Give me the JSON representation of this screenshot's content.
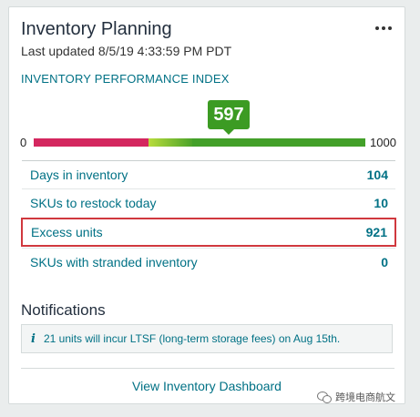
{
  "card": {
    "title": "Inventory Planning",
    "last_updated": "Last updated 8/5/19 4:33:59 PM PDT",
    "more_icon": "more-horizontal-icon"
  },
  "ipi": {
    "label": "INVENTORY PERFORMANCE INDEX",
    "score": "597",
    "scale_min": "0",
    "scale_max": "1000",
    "score_fraction": 0.597,
    "colors": {
      "low": "#d4275f",
      "mid": "#b8dc3c",
      "high": "#43a029",
      "bubble": "#3c9b23"
    }
  },
  "metrics": [
    {
      "label": "Days in inventory",
      "value": "104"
    },
    {
      "label": "SKUs to restock today",
      "value": "10"
    },
    {
      "label": "Excess units",
      "value": "921"
    },
    {
      "label": "SKUs with stranded inventory",
      "value": "0"
    }
  ],
  "notifications": {
    "title": "Notifications",
    "icon": "info-icon",
    "items": [
      {
        "text": "21 units will incur LTSF (long-term storage fees) on Aug 15th."
      }
    ]
  },
  "footer": {
    "link_label": "View Inventory Dashboard"
  },
  "watermark": {
    "text": "跨境电商航文"
  }
}
